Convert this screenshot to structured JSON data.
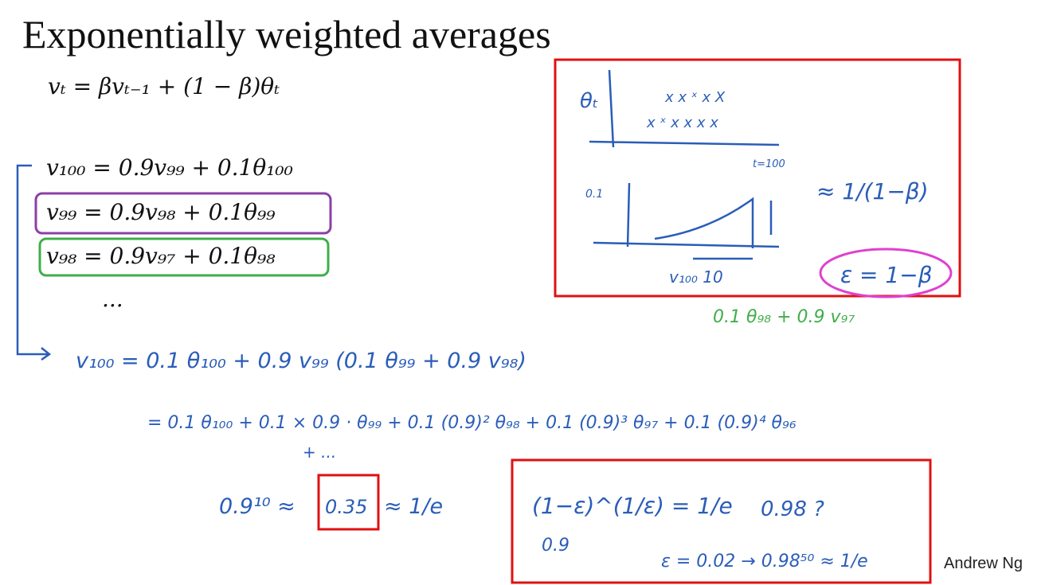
{
  "title": "Exponentially weighted averages",
  "formula": "vₜ = βvₜ₋₁ + (1 − β)θₜ",
  "expansion": [
    "v₁₀₀ = 0.9v₉₉ + 0.1θ₁₀₀",
    "v₉₉ = 0.9v₉₈ + 0.1θ₉₉",
    "v₉₈ = 0.9v₉₇ + 0.1θ₉₈",
    "..."
  ],
  "plot": {
    "y_label": "θₜ",
    "x_label": "t=100",
    "tick": "0.1",
    "span": "v₁₀₀  10",
    "approx": "≈ 1/(1−β)",
    "epsilon": "ε = 1−β"
  },
  "notes": {
    "green_note": "0.1 θ₉₈ + 0.9 v₉₇",
    "line1": "v₁₀₀ = 0.1 θ₁₀₀ + 0.9 v₉₉ (0.1 θ₉₉ + 0.9 v₉₈)",
    "line2": "= 0.1 θ₁₀₀ + 0.1 × 0.9 · θ₉₉ + 0.1 (0.9)² θ₉₈ + 0.1 (0.9)³ θ₉₇ + 0.1 (0.9)⁴ θ₉₆",
    "line3": "+ ...",
    "decay": [
      "0.9¹⁰ ≈",
      "0.35",
      "≈ 1/e"
    ]
  },
  "box": [
    "(1−ε)^(1/ε) = 1/e",
    "0.9",
    "0.98 ?",
    "ε = 0.02 → 0.98⁵⁰ ≈ 1/e"
  ],
  "footer": "Andrew Ng"
}
